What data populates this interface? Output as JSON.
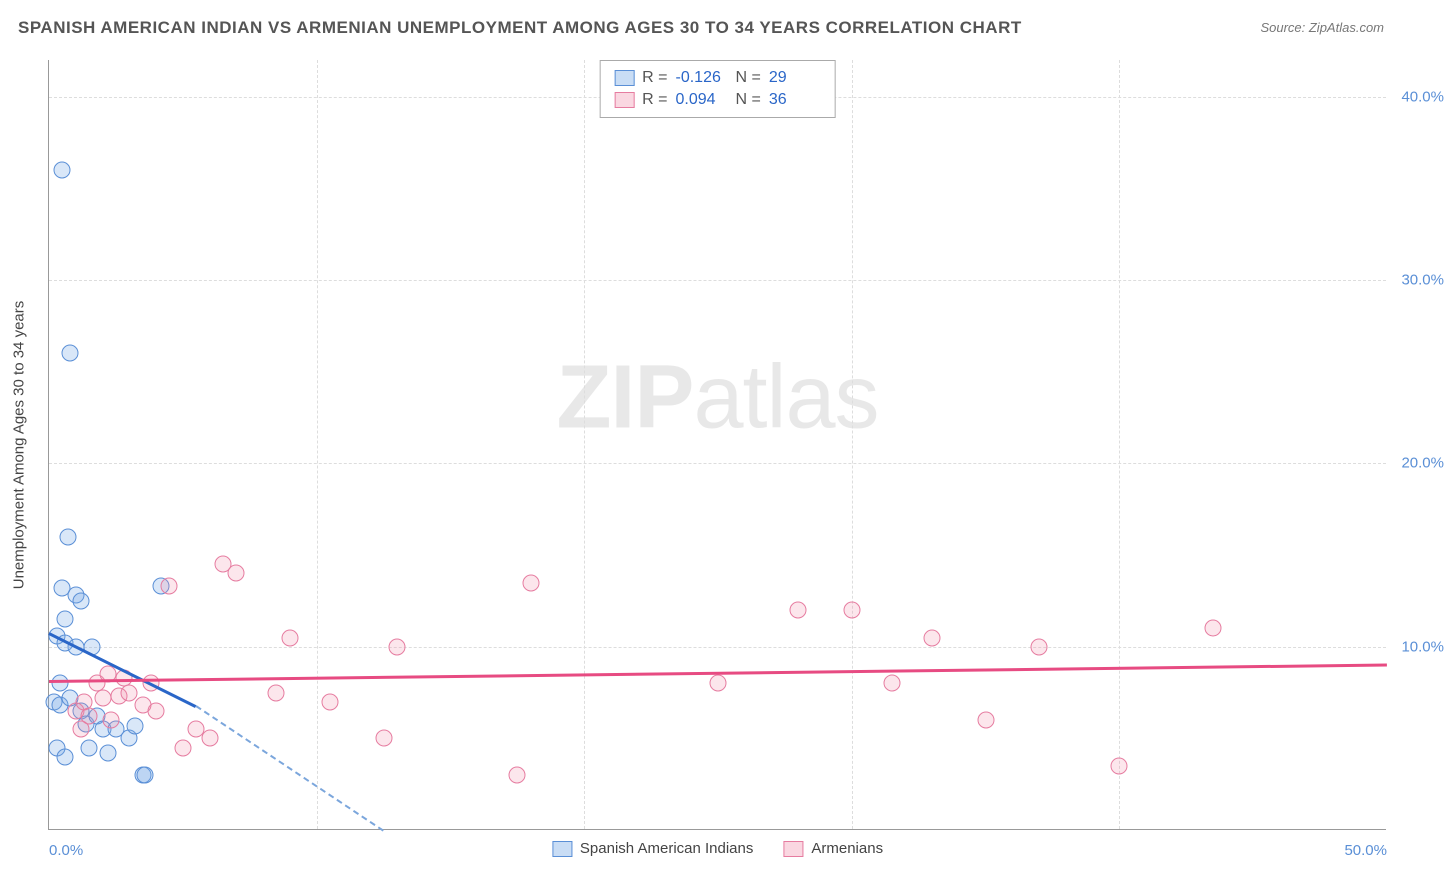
{
  "title": "SPANISH AMERICAN INDIAN VS ARMENIAN UNEMPLOYMENT AMONG AGES 30 TO 34 YEARS CORRELATION CHART",
  "source": "Source: ZipAtlas.com",
  "watermark_bold": "ZIP",
  "watermark_light": "atlas",
  "chart": {
    "type": "scatter",
    "ylabel": "Unemployment Among Ages 30 to 34 years",
    "xlim": [
      0,
      50
    ],
    "ylim": [
      0,
      42
    ],
    "xticks": [
      {
        "v": 0,
        "label": "0.0%"
      },
      {
        "v": 50,
        "label": "50.0%"
      }
    ],
    "yticks": [
      {
        "v": 10,
        "label": "10.0%"
      },
      {
        "v": 20,
        "label": "20.0%"
      },
      {
        "v": 30,
        "label": "30.0%"
      },
      {
        "v": 40,
        "label": "40.0%"
      }
    ],
    "grid_color": "#dddddd",
    "background_color": "#ffffff",
    "series": [
      {
        "id": "a",
        "name": "Spanish American Indians",
        "fill_color": "rgba(120,170,230,0.28)",
        "stroke_color": "#5a8fd6",
        "trend_color": "#2a66c8",
        "R": "-0.126",
        "N": "29",
        "points": [
          [
            0.5,
            36.0
          ],
          [
            0.8,
            26.0
          ],
          [
            0.7,
            16.0
          ],
          [
            0.5,
            13.2
          ],
          [
            1.0,
            12.8
          ],
          [
            0.6,
            11.5
          ],
          [
            1.2,
            12.5
          ],
          [
            0.3,
            10.6
          ],
          [
            0.6,
            10.2
          ],
          [
            1.0,
            10.0
          ],
          [
            1.6,
            10.0
          ],
          [
            0.4,
            8.0
          ],
          [
            0.2,
            7.0
          ],
          [
            0.4,
            6.8
          ],
          [
            0.8,
            7.2
          ],
          [
            1.2,
            6.5
          ],
          [
            1.4,
            5.8
          ],
          [
            1.8,
            6.2
          ],
          [
            2.0,
            5.5
          ],
          [
            2.5,
            5.5
          ],
          [
            3.0,
            5.0
          ],
          [
            3.2,
            5.7
          ],
          [
            0.3,
            4.5
          ],
          [
            0.6,
            4.0
          ],
          [
            1.5,
            4.5
          ],
          [
            2.2,
            4.2
          ],
          [
            3.5,
            3.0
          ],
          [
            3.6,
            3.0
          ],
          [
            4.2,
            13.3
          ]
        ],
        "trend": {
          "x1": 0,
          "y1": 10.8,
          "x2": 5.5,
          "y2": 6.8,
          "dash_to_x": 12.5,
          "dash_to_y": 0
        }
      },
      {
        "id": "b",
        "name": "Armenians",
        "fill_color": "rgba(240,140,170,0.22)",
        "stroke_color": "#e67ca0",
        "trend_color": "#e74b82",
        "R": "0.094",
        "N": "36",
        "points": [
          [
            1.0,
            6.5
          ],
          [
            1.3,
            7.0
          ],
          [
            1.5,
            6.2
          ],
          [
            1.8,
            8.0
          ],
          [
            2.0,
            7.2
          ],
          [
            2.3,
            6.0
          ],
          [
            2.6,
            7.3
          ],
          [
            3.0,
            7.5
          ],
          [
            3.5,
            6.8
          ],
          [
            4.0,
            6.5
          ],
          [
            4.5,
            13.3
          ],
          [
            5.0,
            4.5
          ],
          [
            5.5,
            5.5
          ],
          [
            6.0,
            5.0
          ],
          [
            6.5,
            14.5
          ],
          [
            7.0,
            14.0
          ],
          [
            8.5,
            7.5
          ],
          [
            9.0,
            10.5
          ],
          [
            10.5,
            7.0
          ],
          [
            12.5,
            5.0
          ],
          [
            13.0,
            10.0
          ],
          [
            17.5,
            3.0
          ],
          [
            18.0,
            13.5
          ],
          [
            25.0,
            8.0
          ],
          [
            28.0,
            12.0
          ],
          [
            30.0,
            12.0
          ],
          [
            31.5,
            8.0
          ],
          [
            33.0,
            10.5
          ],
          [
            35.0,
            6.0
          ],
          [
            37.0,
            10.0
          ],
          [
            40.0,
            3.5
          ],
          [
            43.5,
            11.0
          ],
          [
            2.8,
            8.3
          ],
          [
            3.8,
            8.0
          ],
          [
            1.2,
            5.5
          ],
          [
            2.2,
            8.5
          ]
        ],
        "trend": {
          "x1": 0,
          "y1": 8.2,
          "x2": 50,
          "y2": 9.1
        }
      }
    ],
    "stats_labels": {
      "R": "R =",
      "N": "N ="
    },
    "legend_position": "bottom-center"
  }
}
